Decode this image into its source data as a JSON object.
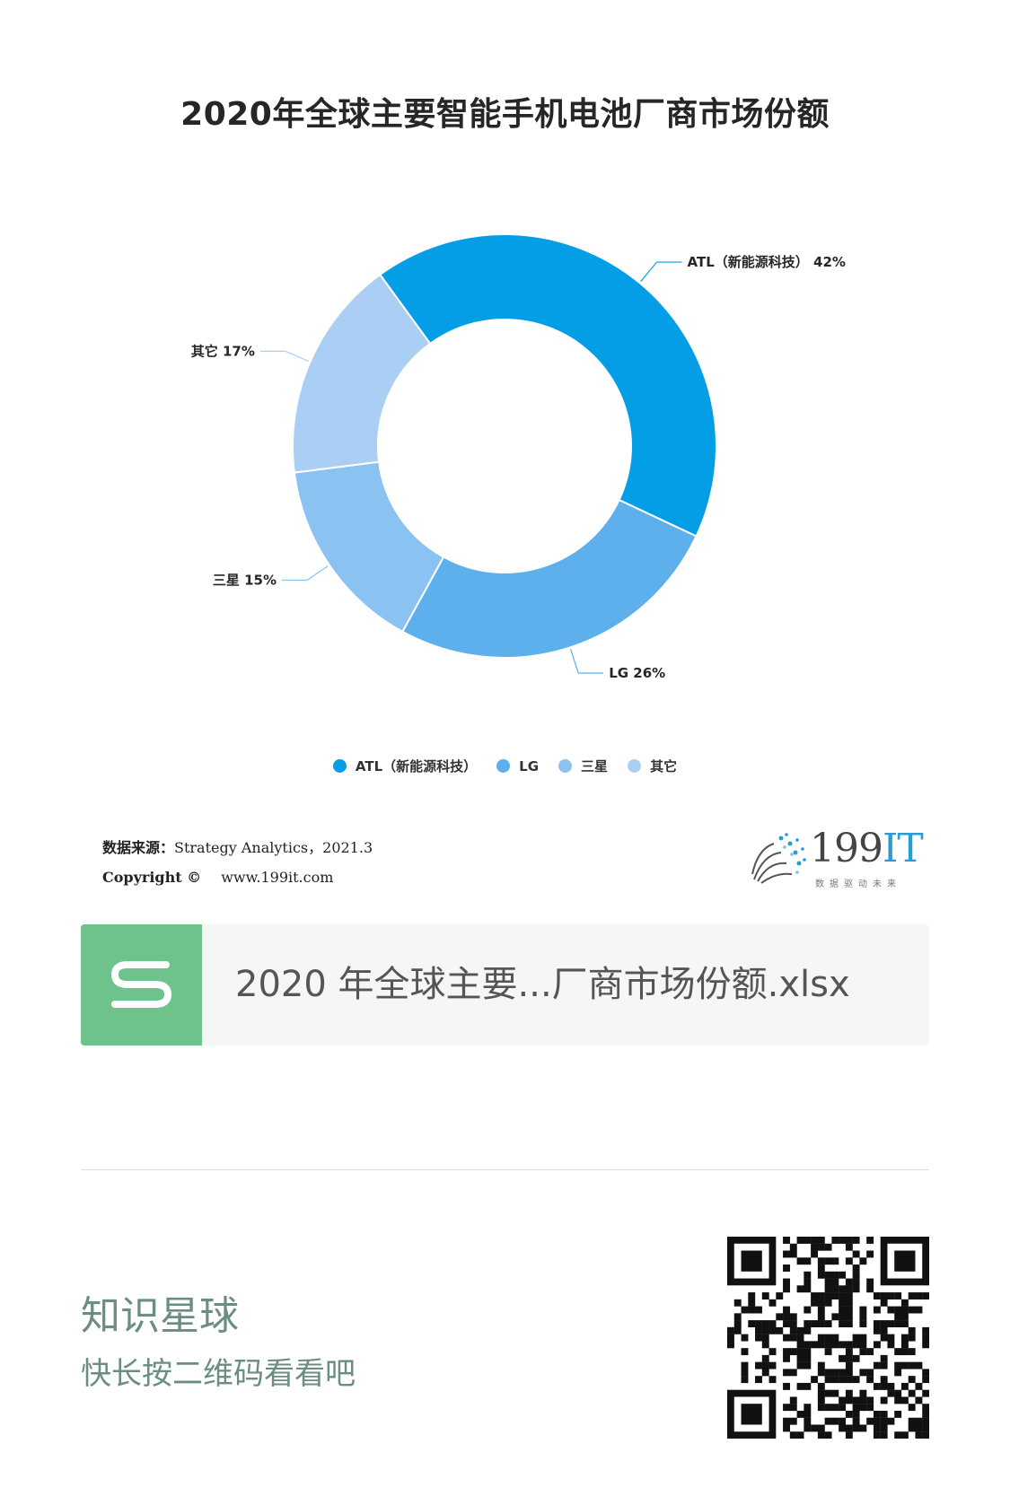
{
  "chart_data": {
    "type": "pie",
    "title": "2020年全球主要智能手机电池厂商市场份额",
    "categories": [
      "ATL（新能源科技）",
      "LG",
      "三星",
      "其它"
    ],
    "values": [
      42,
      26,
      15,
      17
    ],
    "unit": "%",
    "colors": [
      "#049ee7",
      "#5db0ec",
      "#8ac2f1",
      "#abcff4"
    ],
    "slice_labels": [
      "ATL（新能源科技） 42%",
      "LG 26%",
      "三星 15%",
      "其它 17%"
    ],
    "legend_position": "bottom"
  },
  "source": {
    "label": "数据来源：",
    "text": "Strategy Analytics，2021.3",
    "copyright_label": "Copyright ©",
    "site": "www.199it.com"
  },
  "logo": {
    "text_main": "199",
    "text_accent": "IT",
    "tagline": "数据驱动未来"
  },
  "file_card": {
    "name": "2020 年全球主要...厂商市场份额.xlsx",
    "icon": "spreadsheet-s-icon",
    "icon_color": "#6ec38c"
  },
  "footer": {
    "brand": "知识星球",
    "subtitle": "快长按二维码看看吧",
    "qr_icon": "qr-code-icon"
  }
}
